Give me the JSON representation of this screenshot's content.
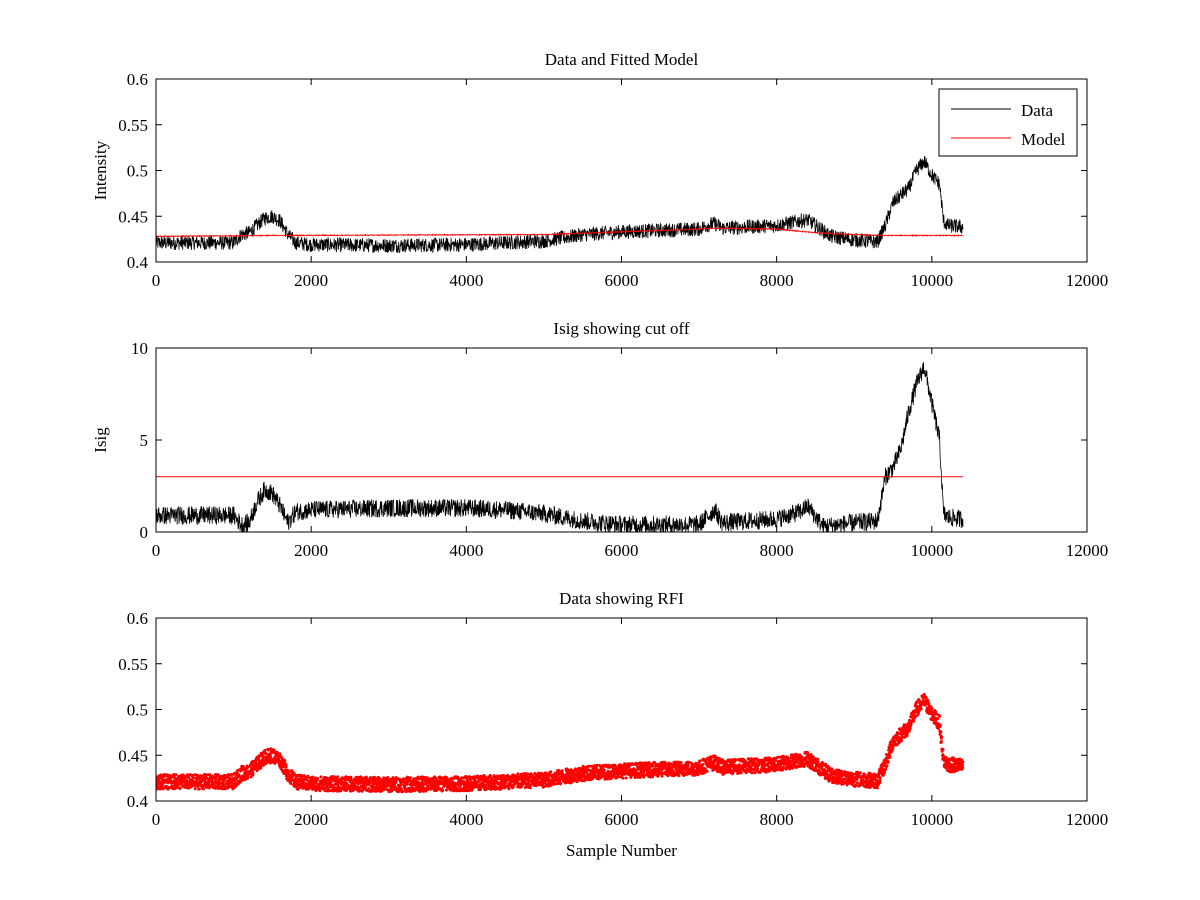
{
  "chart_data": [
    {
      "type": "line",
      "title": "Data and Fitted Model",
      "xlabel": "",
      "ylabel": "Intensity",
      "xlim": [
        0,
        12000
      ],
      "ylim": [
        0.4,
        0.6
      ],
      "xticks": [
        0,
        2000,
        4000,
        6000,
        8000,
        10000,
        12000
      ],
      "xtick_labels": [
        "0",
        "2000",
        "4000",
        "6000",
        "8000",
        "10000",
        "12000"
      ],
      "yticks": [
        0.4,
        0.45,
        0.5,
        0.55,
        0.6
      ],
      "ytick_labels": [
        "0.4",
        "0.45",
        "0.5",
        "0.55",
        "0.6"
      ],
      "legend": {
        "location": "top-right",
        "entries": [
          "Data",
          "Model"
        ]
      },
      "series": [
        {
          "name": "Data",
          "color": "#000000",
          "style": "line",
          "noise": 0.008,
          "x": [
            0,
            1000,
            1100,
            1200,
            1300,
            1400,
            1500,
            1600,
            1700,
            1800,
            2000,
            3000,
            4000,
            5000,
            5500,
            6000,
            7000,
            7100,
            7200,
            7300,
            8000,
            8300,
            8400,
            8500,
            8700,
            9000,
            9300,
            9400,
            9500,
            9600,
            9700,
            9800,
            9900,
            10000,
            10050,
            10100,
            10150,
            10200,
            10400
          ],
          "y": [
            0.421,
            0.421,
            0.43,
            0.432,
            0.44,
            0.448,
            0.45,
            0.445,
            0.43,
            0.421,
            0.419,
            0.418,
            0.419,
            0.423,
            0.43,
            0.433,
            0.436,
            0.44,
            0.442,
            0.437,
            0.44,
            0.445,
            0.446,
            0.44,
            0.428,
            0.424,
            0.422,
            0.44,
            0.465,
            0.473,
            0.48,
            0.5,
            0.51,
            0.495,
            0.49,
            0.485,
            0.445,
            0.44,
            0.438
          ]
        },
        {
          "name": "Model",
          "color": "#ff0000",
          "style": "line",
          "noise": 0.0005,
          "x": [
            0,
            1500,
            5000,
            6000,
            7000,
            7200,
            8000,
            8500,
            9000,
            9400,
            10400
          ],
          "y": [
            0.428,
            0.429,
            0.43,
            0.433,
            0.436,
            0.437,
            0.436,
            0.432,
            0.43,
            0.429,
            0.429
          ]
        }
      ]
    },
    {
      "type": "line",
      "title": "Isig showing cut off",
      "xlabel": "",
      "ylabel": "Isig",
      "xlim": [
        0,
        12000
      ],
      "ylim": [
        0,
        10
      ],
      "xticks": [
        0,
        2000,
        4000,
        6000,
        8000,
        10000,
        12000
      ],
      "xtick_labels": [
        "0",
        "2000",
        "4000",
        "6000",
        "8000",
        "10000",
        "12000"
      ],
      "yticks": [
        0,
        5,
        10
      ],
      "ytick_labels": [
        "0",
        "5",
        "10"
      ],
      "series": [
        {
          "color": "#000000",
          "style": "line",
          "noise": 0.5,
          "x": [
            0,
            1000,
            1100,
            1200,
            1300,
            1400,
            1500,
            1600,
            1700,
            1800,
            2000,
            3000,
            4000,
            4500,
            5000,
            5500,
            6000,
            7000,
            7100,
            7200,
            7300,
            8000,
            8300,
            8400,
            8600,
            9000,
            9300,
            9400,
            9500,
            9600,
            9700,
            9800,
            9900,
            10000,
            10050,
            10100,
            10150,
            10200,
            10400
          ],
          "y": [
            0.9,
            0.9,
            0.4,
            0.5,
            1.6,
            2.3,
            2.1,
            1.4,
            0.5,
            1.1,
            1.2,
            1.3,
            1.3,
            1.2,
            1.0,
            0.6,
            0.4,
            0.4,
            0.8,
            1.2,
            0.5,
            0.7,
            1.1,
            1.4,
            0.3,
            0.5,
            0.6,
            3.0,
            3.5,
            4.5,
            6.5,
            8.0,
            9.0,
            7.0,
            6.0,
            5.0,
            1.0,
            0.8,
            0.7
          ]
        },
        {
          "color": "#ff0000",
          "style": "line",
          "noise": 0,
          "x": [
            0,
            10400
          ],
          "y": [
            3,
            3
          ]
        }
      ]
    },
    {
      "type": "scatter",
      "title": "Data showing RFI",
      "xlabel": "Sample Number",
      "ylabel": "",
      "xlim": [
        0,
        12000
      ],
      "ylim": [
        0.4,
        0.6
      ],
      "xticks": [
        0,
        2000,
        4000,
        6000,
        8000,
        10000,
        12000
      ],
      "xtick_labels": [
        "0",
        "2000",
        "4000",
        "6000",
        "8000",
        "10000",
        "12000"
      ],
      "yticks": [
        0.4,
        0.45,
        0.5,
        0.55,
        0.6
      ],
      "ytick_labels": [
        "0.4",
        "0.45",
        "0.5",
        "0.55",
        "0.6"
      ],
      "series": [
        {
          "color": "#ff0000",
          "style": "marker",
          "noise": 0.008,
          "x": [
            0,
            1000,
            1100,
            1200,
            1300,
            1400,
            1500,
            1600,
            1700,
            1800,
            2000,
            3000,
            4000,
            5000,
            5500,
            6000,
            7000,
            7100,
            7200,
            7300,
            8000,
            8300,
            8400,
            8500,
            8700,
            9000,
            9300,
            9400,
            9500,
            9600,
            9700,
            9800,
            9900,
            10000,
            10050,
            10100,
            10150,
            10200,
            10400
          ],
          "y": [
            0.421,
            0.421,
            0.43,
            0.432,
            0.44,
            0.448,
            0.45,
            0.445,
            0.43,
            0.421,
            0.419,
            0.418,
            0.419,
            0.423,
            0.43,
            0.433,
            0.436,
            0.44,
            0.442,
            0.437,
            0.44,
            0.445,
            0.446,
            0.44,
            0.428,
            0.424,
            0.422,
            0.44,
            0.465,
            0.473,
            0.48,
            0.5,
            0.51,
            0.495,
            0.49,
            0.485,
            0.445,
            0.44,
            0.438
          ]
        }
      ]
    }
  ]
}
